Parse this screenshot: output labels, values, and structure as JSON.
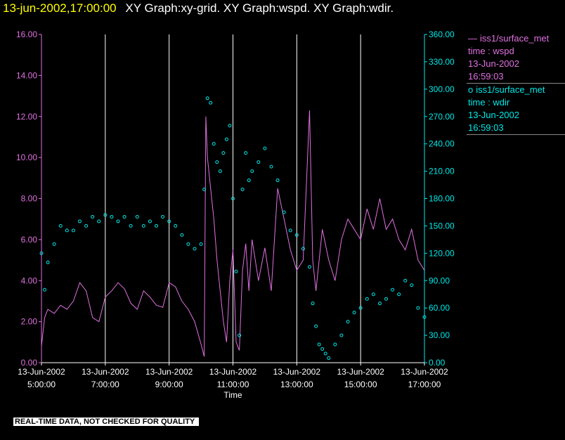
{
  "header": {
    "timestamp": "13-jun-2002,17:00:00",
    "title": "XY Graph:xy-grid.  XY Graph:wspd.  XY Graph:wdir."
  },
  "footer": {
    "notice": "REAL-TIME DATA, NOT CHECKED FOR QUALITY"
  },
  "legend": [
    {
      "symbol": "—",
      "source": "iss1/surface_met",
      "field": "time : wspd",
      "date": "13-Jun-2002",
      "time": "16:59:03",
      "color": "#e070e0"
    },
    {
      "symbol": "o",
      "source": "iss1/surface_met",
      "field": "time : wdir",
      "date": "13-Jun-2002",
      "time": "16:59:03",
      "color": "#00e8e8"
    }
  ],
  "colors": {
    "wspd": "#e070e0",
    "wdir": "#00e8e8",
    "grid": "#ffffff",
    "text": "#ffffff"
  },
  "chart_data": {
    "type": "line",
    "xlabel": "Time",
    "x_ticks": [
      {
        "date": "13-Jun-2002",
        "time": "5:00:00",
        "hour": 5
      },
      {
        "date": "13-Jun-2002",
        "time": "7:00:00",
        "hour": 7
      },
      {
        "date": "13-Jun-2002",
        "time": "9:00:00",
        "hour": 9
      },
      {
        "date": "13-Jun-2002",
        "time": "11:00:00",
        "hour": 11
      },
      {
        "date": "13-Jun-2002",
        "time": "13:00:00",
        "hour": 13
      },
      {
        "date": "13-Jun-2002",
        "time": "15:00:00",
        "hour": 15
      },
      {
        "date": "13-Jun-2002",
        "time": "17:00:00",
        "hour": 17
      }
    ],
    "xlim": [
      5.0,
      17.0
    ],
    "x_grid": "vertical at each hour",
    "y_left": {
      "ticks": [
        "0.00",
        "2.00",
        "4.00",
        "6.00",
        "8.00",
        "10.00",
        "12.00",
        "14.00",
        "16.00"
      ],
      "lim": [
        0,
        16
      ]
    },
    "y_right": {
      "ticks": [
        "0.00",
        "30.00",
        "60.00",
        "90.00",
        "120.00",
        "150.00",
        "180.00",
        "210.00",
        "240.00",
        "270.00",
        "300.00",
        "330.00",
        "360.00"
      ],
      "lim": [
        0,
        360
      ]
    },
    "series": [
      {
        "name": "wspd",
        "axis": "left",
        "style": "line",
        "x": [
          5.0,
          5.1,
          5.2,
          5.4,
          5.6,
          5.8,
          6.0,
          6.2,
          6.4,
          6.6,
          6.8,
          7.0,
          7.2,
          7.4,
          7.6,
          7.8,
          8.0,
          8.2,
          8.4,
          8.6,
          8.8,
          9.0,
          9.2,
          9.4,
          9.6,
          9.8,
          10.0,
          10.1,
          10.15,
          10.2,
          10.3,
          10.4,
          10.5,
          10.6,
          10.7,
          10.8,
          10.9,
          11.0,
          11.1,
          11.2,
          11.3,
          11.4,
          11.5,
          11.6,
          11.8,
          12.0,
          12.2,
          12.4,
          12.6,
          12.8,
          13.0,
          13.2,
          13.4,
          13.5,
          13.6,
          13.8,
          14.0,
          14.2,
          14.4,
          14.6,
          14.8,
          15.0,
          15.2,
          15.4,
          15.6,
          15.8,
          16.0,
          16.2,
          16.4,
          16.6,
          16.8,
          17.0
        ],
        "y": [
          0.8,
          2.2,
          2.6,
          2.4,
          2.8,
          2.6,
          3.0,
          3.9,
          3.5,
          2.2,
          2.0,
          3.2,
          3.5,
          3.9,
          3.6,
          2.9,
          2.6,
          3.5,
          3.2,
          2.8,
          2.7,
          3.9,
          3.7,
          3.0,
          2.6,
          2.0,
          0.9,
          0.3,
          12.0,
          10.0,
          8.5,
          7.0,
          5.0,
          3.5,
          2.0,
          1.0,
          4.0,
          5.5,
          1.0,
          0.6,
          4.5,
          5.8,
          3.5,
          6.0,
          4.0,
          5.6,
          3.5,
          8.5,
          7.0,
          5.5,
          4.5,
          5.0,
          12.3,
          5.0,
          3.5,
          6.5,
          5.0,
          4.0,
          6.0,
          7.0,
          6.5,
          6.0,
          7.5,
          6.5,
          8.0,
          6.5,
          7.0,
          6.0,
          5.5,
          6.5,
          5.0,
          4.5
        ],
        "color": "#e070e0"
      },
      {
        "name": "wdir",
        "axis": "right",
        "style": "markers",
        "x": [
          5.0,
          5.1,
          5.2,
          5.4,
          5.6,
          5.8,
          6.0,
          6.2,
          6.4,
          6.6,
          6.8,
          7.0,
          7.2,
          7.4,
          7.6,
          7.8,
          8.0,
          8.2,
          8.4,
          8.6,
          8.8,
          9.0,
          9.2,
          9.4,
          9.6,
          9.8,
          10.0,
          10.1,
          10.2,
          10.3,
          10.4,
          10.5,
          10.6,
          10.7,
          10.8,
          10.9,
          11.0,
          11.1,
          11.2,
          11.3,
          11.4,
          11.5,
          11.6,
          11.8,
          12.0,
          12.2,
          12.4,
          12.6,
          12.8,
          13.0,
          13.2,
          13.4,
          13.5,
          13.6,
          13.7,
          13.8,
          13.9,
          14.0,
          14.2,
          14.4,
          14.6,
          14.8,
          15.0,
          15.2,
          15.4,
          15.6,
          15.8,
          16.0,
          16.2,
          16.4,
          16.6,
          16.8,
          17.0
        ],
        "y": [
          120,
          80,
          110,
          130,
          150,
          145,
          145,
          155,
          150,
          160,
          155,
          162,
          160,
          155,
          160,
          150,
          160,
          150,
          155,
          150,
          160,
          155,
          150,
          140,
          130,
          125,
          130,
          190,
          290,
          285,
          240,
          220,
          210,
          230,
          245,
          260,
          180,
          100,
          30,
          190,
          230,
          200,
          210,
          220,
          235,
          215,
          200,
          165,
          145,
          140,
          125,
          105,
          65,
          40,
          20,
          15,
          10,
          5,
          20,
          30,
          45,
          55,
          60,
          70,
          75,
          65,
          70,
          80,
          75,
          90,
          85,
          60,
          50
        ],
        "color": "#00e8e8"
      }
    ]
  }
}
